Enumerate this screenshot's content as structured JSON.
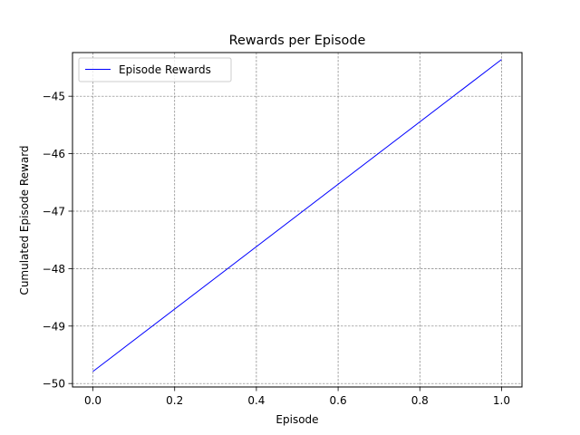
{
  "chart_data": {
    "type": "line",
    "title": "Rewards per Episode",
    "xlabel": "Episode",
    "ylabel": "Cumulated Episode Reward",
    "xlim": [
      -0.05,
      1.05
    ],
    "ylim": [
      -50.06,
      -44.24
    ],
    "x_ticks": [
      0.0,
      0.2,
      0.4,
      0.6,
      0.8,
      1.0
    ],
    "x_tick_labels": [
      "0.0",
      "0.2",
      "0.4",
      "0.6",
      "0.8",
      "1.0"
    ],
    "y_ticks": [
      -50,
      -49,
      -48,
      -47,
      -46,
      -45
    ],
    "y_tick_labels": [
      "−50",
      "−49",
      "−48",
      "−47",
      "−46",
      "−45"
    ],
    "grid": true,
    "legend_position": "top-left",
    "series": [
      {
        "name": "Episode Rewards",
        "color": "#0000ff",
        "x": [
          0,
          1
        ],
        "y": [
          -49.79,
          -44.36
        ]
      }
    ]
  }
}
